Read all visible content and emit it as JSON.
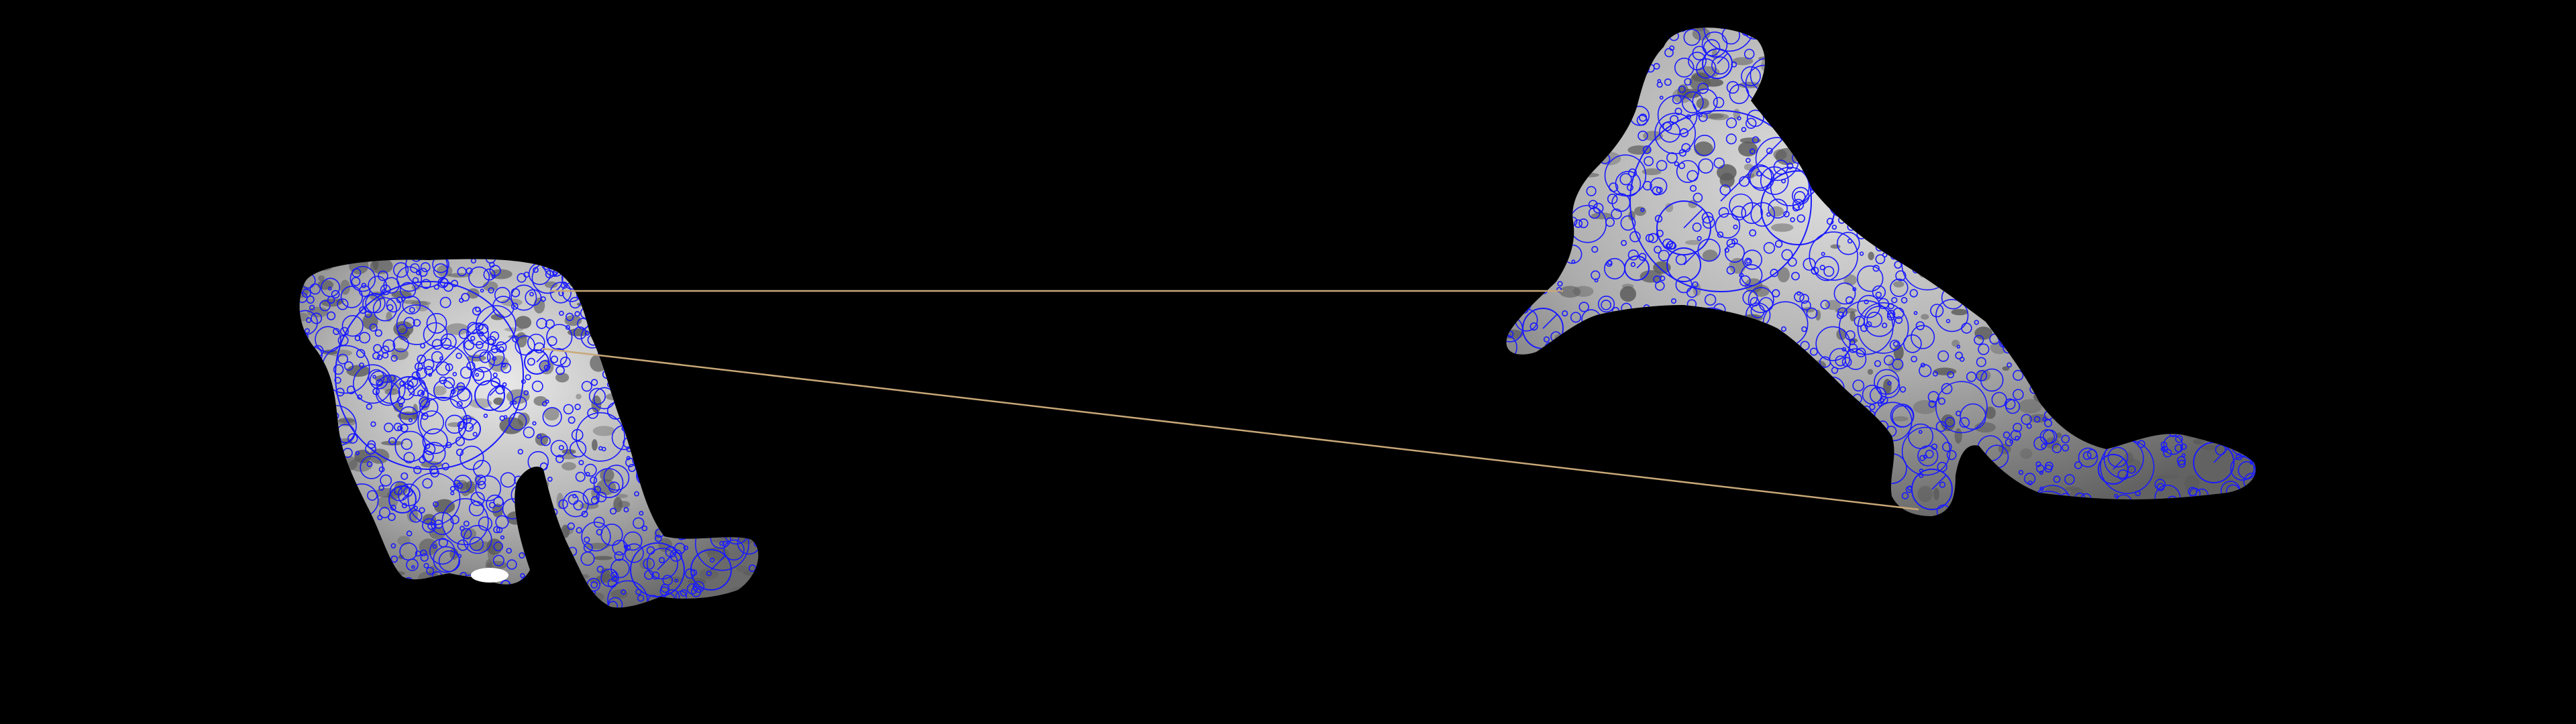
{
  "image": {
    "description_type": "feature-matching visualization",
    "background_color": "#000000",
    "subject_fill": "#b8b8b8",
    "subject_shadow": "#5a5a5a",
    "keypoint_color": "#1a1aff",
    "match_line_color": "#c8a878"
  },
  "objects": [
    {
      "name": "left-animal",
      "pose": "crouched"
    },
    {
      "name": "right-animal",
      "pose": "leaping"
    }
  ],
  "matches": [
    {
      "name": "match-line-1"
    },
    {
      "name": "match-line-2"
    }
  ]
}
